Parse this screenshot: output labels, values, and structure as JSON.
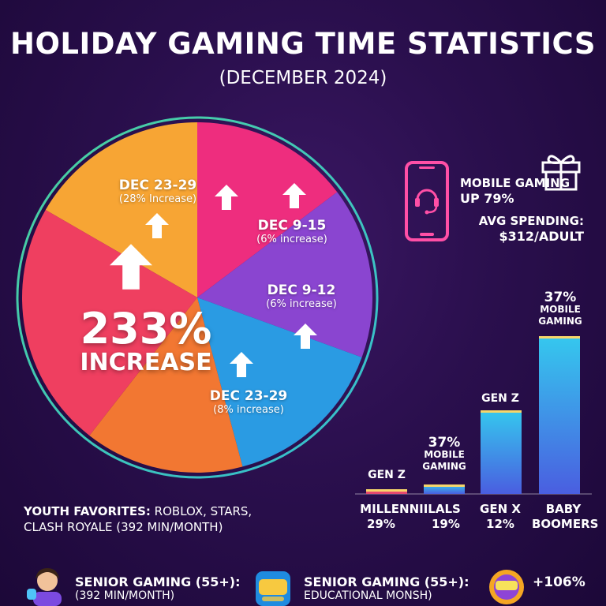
{
  "title": "HOLIDAY GAMING TIME STATISTICS",
  "subtitle": "(DECEMBER 2024)",
  "chart_data": [
    {
      "type": "pie",
      "slices": [
        {
          "label": "DEC 23-29",
          "sub": "(28% Increase)",
          "color": "#f7a534"
        },
        {
          "label": "",
          "sub": "",
          "color": "#ee2d7e"
        },
        {
          "label": "DEC 9-15",
          "sub": "(6% increase)",
          "color": "#8a45d0"
        },
        {
          "label": "DEC 9-12",
          "sub": "(6% increase)",
          "color": "#2a9be3"
        },
        {
          "label": "DEC 23-29",
          "sub": "(8% increase)",
          "color": "#f27732"
        },
        {
          "label": "",
          "sub": "",
          "color": "#ef3f60"
        }
      ],
      "highlight": {
        "value": "233%",
        "label": "INCREASE"
      }
    },
    {
      "type": "bar",
      "categories": [
        {
          "name": "MILLENNIILALS",
          "value": "29%",
          "bar_label": "GEN Z",
          "height": 0.03
        },
        {
          "name": "",
          "value": "19%",
          "bar_label": "37% MOBILE GAMING",
          "height": 0.06
        },
        {
          "name": "GEN X",
          "value": "12%",
          "bar_label": "GEN Z",
          "height": 0.53
        },
        {
          "name": "BABY BOOMERS",
          "value": "",
          "bar_label": "37% MOBILE GAMING",
          "height": 1.0
        }
      ]
    }
  ],
  "mobile": {
    "line1": "MOBILE GAMING",
    "line2": "UP 79%",
    "icon": "phone-headset-icon"
  },
  "spending": {
    "line1": "AVG SPENDING:",
    "line2": "$312/ADULT",
    "icon": "gift-icon"
  },
  "youth": {
    "label": "YOUTH FAVORITES:",
    "text": " ROBLOX, STARS,",
    "line2": "CLASH ROYALE (392 MIN/MONTH)"
  },
  "senior1": {
    "title": "SENIOR GAMING (55+):",
    "sub": "(392 MIN/MONTH)"
  },
  "senior2": {
    "title": "SENIOR GAMING (55+):",
    "sub": "EDUCATIONAL MONSH)",
    "value": "+106%"
  },
  "colors": {
    "background": "#2a0f4d",
    "ring": "#4fe6a6",
    "accent": "#ff3f9a"
  }
}
